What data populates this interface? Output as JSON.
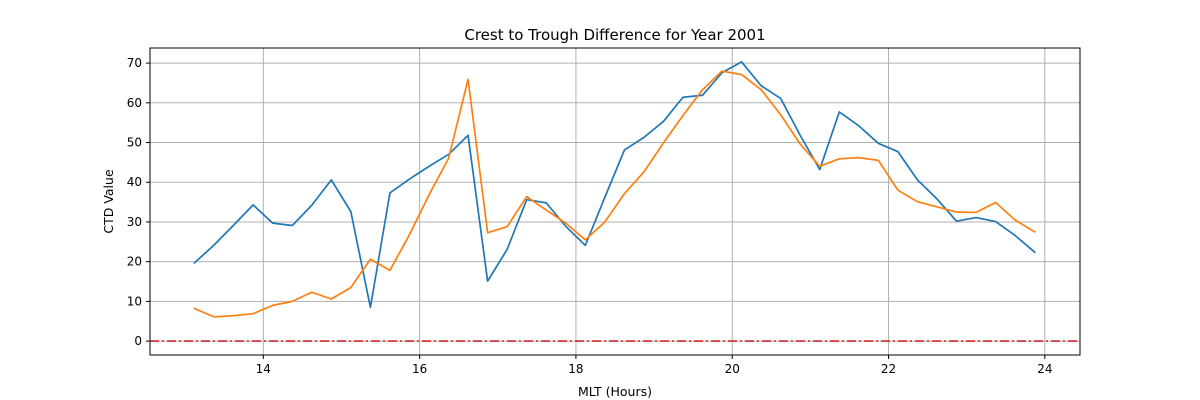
{
  "chart_data": {
    "type": "line",
    "title": "Crest to Trough Difference for Year 2001",
    "xlabel": "MLT (Hours)",
    "ylabel": "CTD Value",
    "xlim": [
      12.55,
      24.45
    ],
    "ylim": [
      -3.5,
      73.8
    ],
    "x_ticks": [
      14,
      16,
      18,
      20,
      22,
      24
    ],
    "y_ticks": [
      0,
      10,
      20,
      30,
      40,
      50,
      60,
      70
    ],
    "grid": true,
    "reference_line": {
      "y": 0,
      "color": "#d62728",
      "style": "dash-dot"
    },
    "series": [
      {
        "color": "#1f77b4",
        "points": [
          [
            13.12,
            19.7
          ],
          [
            13.37,
            24.2
          ],
          [
            13.62,
            29.2
          ],
          [
            13.87,
            34.3
          ],
          [
            14.12,
            29.7
          ],
          [
            14.37,
            29.1
          ],
          [
            14.62,
            34.2
          ],
          [
            14.87,
            40.6
          ],
          [
            15.12,
            32.6
          ],
          [
            15.37,
            8.5
          ],
          [
            15.62,
            37.3
          ],
          [
            15.87,
            40.8
          ],
          [
            16.12,
            44.0
          ],
          [
            16.37,
            47.0
          ],
          [
            16.62,
            51.8
          ],
          [
            16.87,
            15.1
          ],
          [
            17.12,
            23.1
          ],
          [
            17.37,
            35.6
          ],
          [
            17.62,
            34.8
          ],
          [
            17.87,
            28.9
          ],
          [
            18.12,
            24.1
          ],
          [
            18.37,
            36.2
          ],
          [
            18.62,
            48.1
          ],
          [
            18.87,
            51.3
          ],
          [
            19.12,
            55.3
          ],
          [
            19.37,
            61.4
          ],
          [
            19.62,
            61.9
          ],
          [
            19.87,
            67.6
          ],
          [
            20.12,
            70.3
          ],
          [
            20.37,
            64.3
          ],
          [
            20.62,
            61.1
          ],
          [
            20.87,
            51.8
          ],
          [
            21.12,
            43.2
          ],
          [
            21.37,
            57.7
          ],
          [
            21.62,
            54.2
          ],
          [
            21.87,
            49.8
          ],
          [
            22.12,
            47.7
          ],
          [
            22.37,
            40.6
          ],
          [
            22.62,
            35.8
          ],
          [
            22.87,
            30.2
          ],
          [
            23.12,
            31.1
          ],
          [
            23.37,
            30.1
          ],
          [
            23.62,
            26.6
          ],
          [
            23.87,
            22.4
          ]
        ]
      },
      {
        "color": "#ff7f0e",
        "points": [
          [
            13.12,
            8.2
          ],
          [
            13.37,
            6.1
          ],
          [
            13.62,
            6.4
          ],
          [
            13.87,
            6.9
          ],
          [
            14.12,
            9.0
          ],
          [
            14.37,
            10.0
          ],
          [
            14.62,
            12.3
          ],
          [
            14.87,
            10.6
          ],
          [
            15.12,
            13.5
          ],
          [
            15.37,
            20.6
          ],
          [
            15.62,
            17.8
          ],
          [
            15.87,
            26.8
          ],
          [
            16.12,
            36.8
          ],
          [
            16.37,
            46.0
          ],
          [
            16.62,
            65.9
          ],
          [
            16.87,
            27.3
          ],
          [
            17.12,
            28.8
          ],
          [
            17.37,
            36.4
          ],
          [
            17.62,
            33.0
          ],
          [
            17.87,
            29.7
          ],
          [
            18.12,
            25.5
          ],
          [
            18.37,
            30.0
          ],
          [
            18.62,
            37.1
          ],
          [
            18.87,
            42.6
          ],
          [
            19.12,
            49.9
          ],
          [
            19.37,
            56.8
          ],
          [
            19.62,
            63.3
          ],
          [
            19.87,
            68.0
          ],
          [
            20.12,
            67.1
          ],
          [
            20.37,
            63.3
          ],
          [
            20.62,
            57.0
          ],
          [
            20.87,
            49.6
          ],
          [
            21.12,
            44.0
          ],
          [
            21.37,
            45.9
          ],
          [
            21.62,
            46.2
          ],
          [
            21.87,
            45.5
          ],
          [
            22.12,
            38.0
          ],
          [
            22.37,
            35.1
          ],
          [
            22.62,
            33.8
          ],
          [
            22.87,
            32.5
          ],
          [
            23.12,
            32.4
          ],
          [
            23.37,
            34.9
          ],
          [
            23.62,
            30.5
          ],
          [
            23.87,
            27.5
          ]
        ]
      }
    ]
  }
}
